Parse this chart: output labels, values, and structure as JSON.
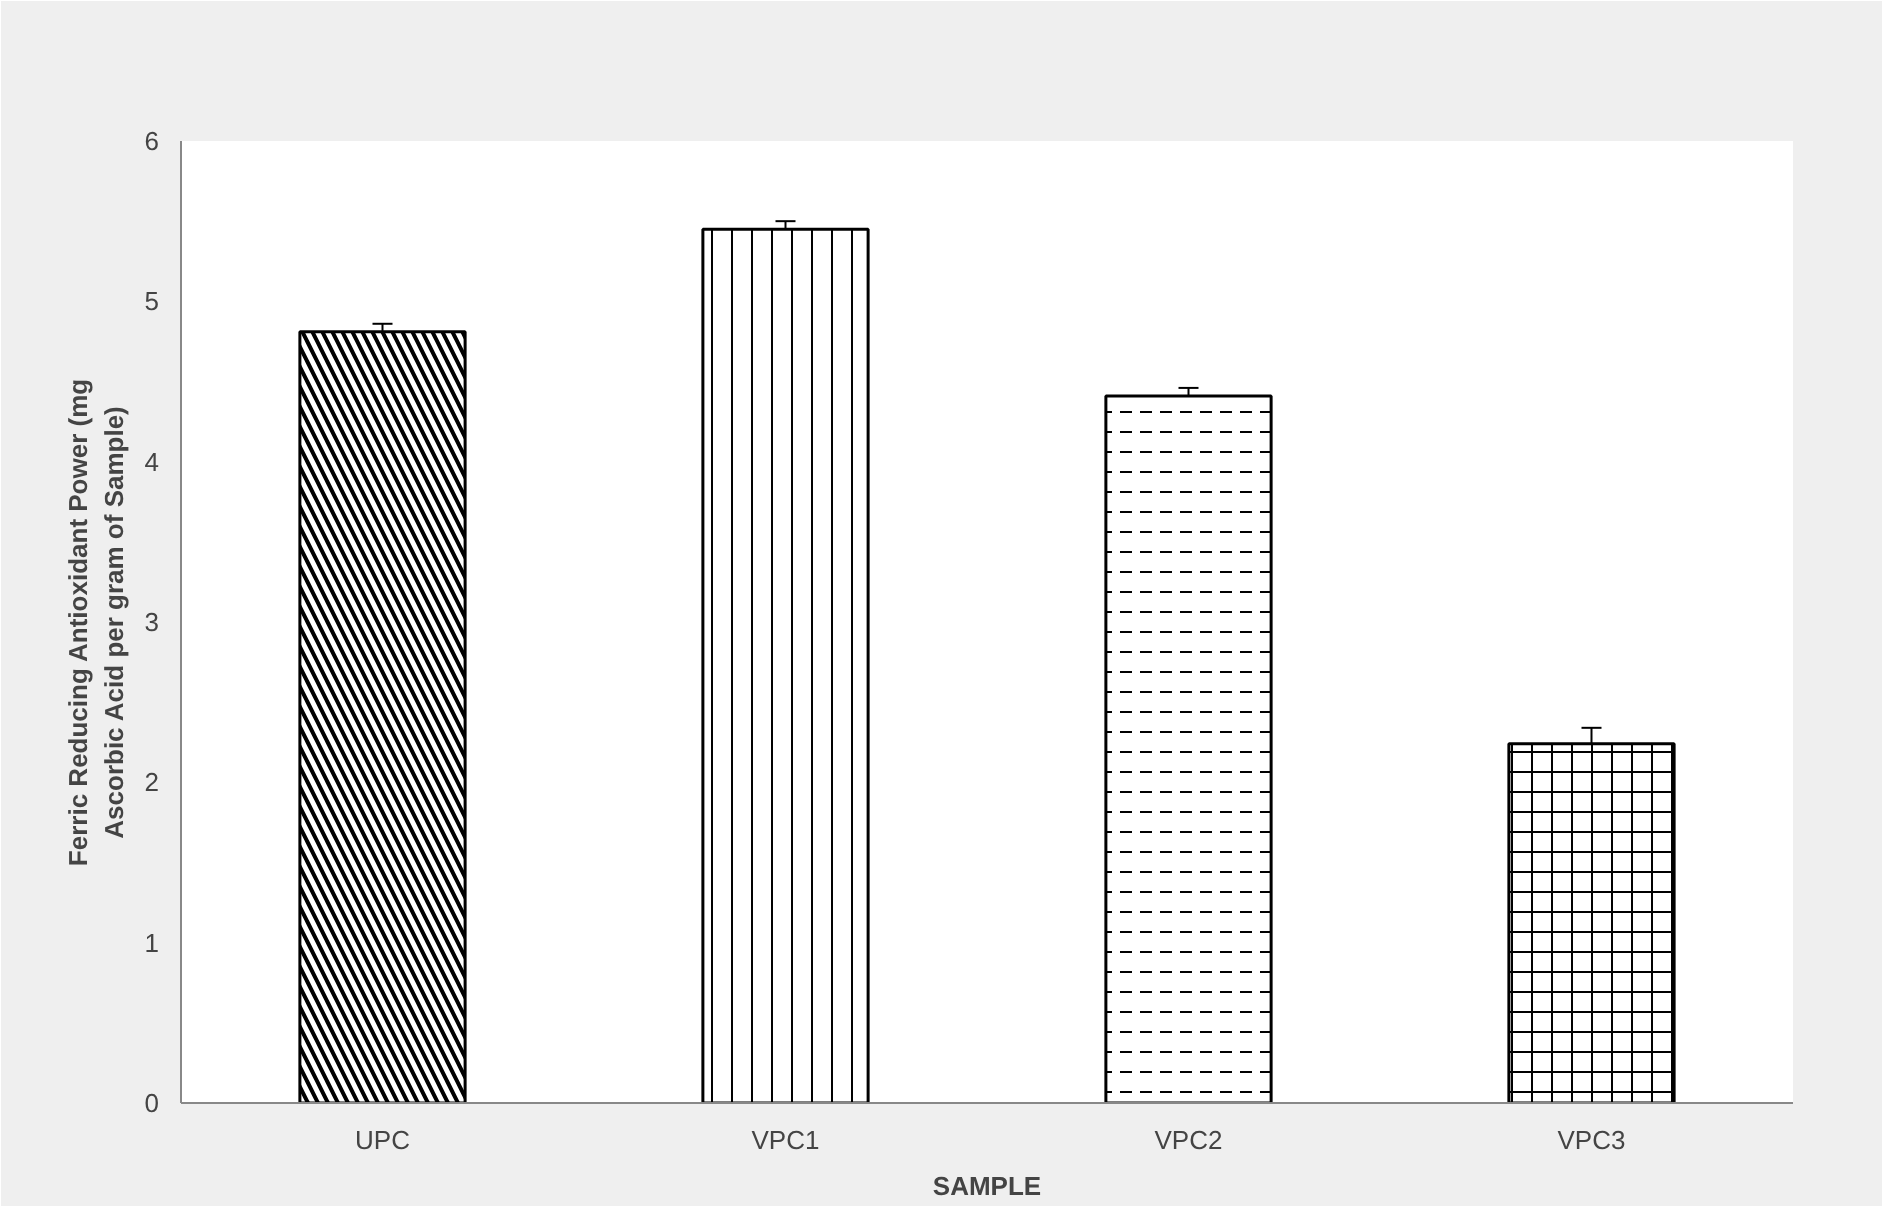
{
  "chart_data": {
    "type": "bar",
    "xlabel": "SAMPLE",
    "ylabel": "Ferric Reducing Antioxidant Power (mg\nAscorbic Acid per gram of Sample)",
    "categories": [
      "UPC",
      "VPC1",
      "VPC2",
      "VPC3"
    ],
    "values": [
      4.81,
      5.45,
      4.41,
      2.24
    ],
    "errors": [
      0.05,
      0.05,
      0.05,
      0.1
    ],
    "colors": [
      "#000000",
      "#000000",
      "#000000",
      "#000000"
    ],
    "ylim": [
      0,
      6
    ],
    "yticks": [
      0,
      1,
      2,
      3,
      4,
      5,
      6
    ],
    "grid": false
  }
}
